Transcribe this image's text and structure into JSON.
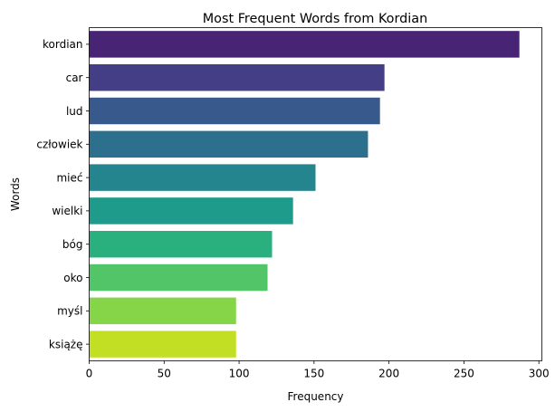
{
  "chart_data": {
    "type": "bar",
    "orientation": "horizontal",
    "title": "Most Frequent Words from Kordian",
    "xlabel": "Frequency",
    "ylabel": "Words",
    "categories": [
      "kordian",
      "car",
      "lud",
      "człowiek",
      "mieć",
      "wielki",
      "bóg",
      "oko",
      "myśl",
      "książę"
    ],
    "values": [
      287,
      197,
      194,
      186,
      151,
      136,
      122,
      119,
      98,
      98
    ],
    "colors": [
      "#482475",
      "#433e85",
      "#38598c",
      "#2d708e",
      "#25858e",
      "#1e9b8a",
      "#2ab07f",
      "#52c569",
      "#86d549",
      "#c2df23"
    ],
    "xlim": [
      0,
      302
    ],
    "xticks": [
      0,
      50,
      100,
      150,
      200,
      250,
      300
    ],
    "grid": false,
    "legend": false
  }
}
